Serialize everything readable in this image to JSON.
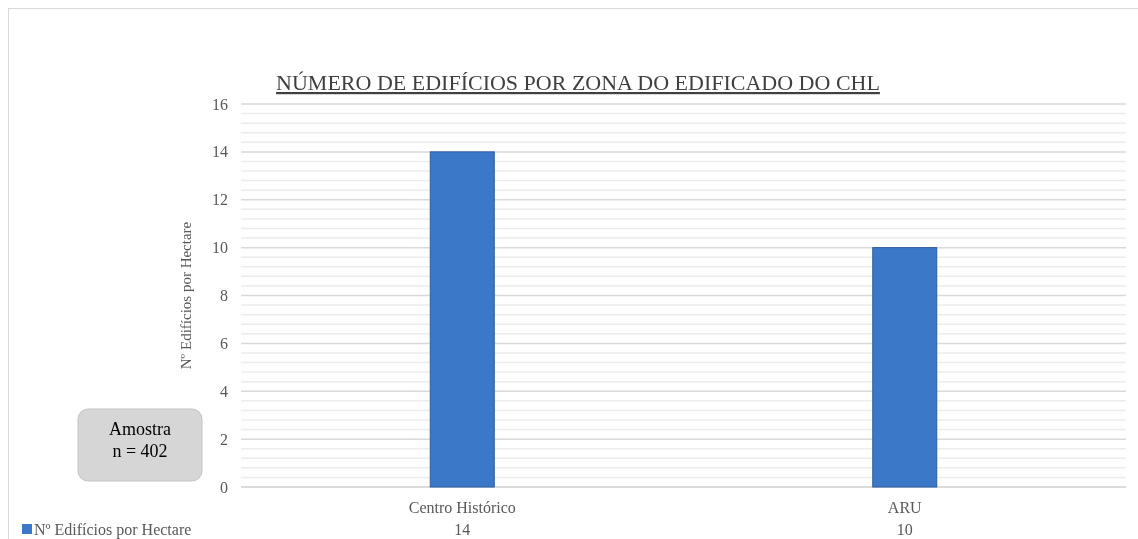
{
  "chart_data": {
    "type": "bar",
    "title": "NÚMERO DE EDIFÍCIOS POR ZONA DO EDIFICADO DO CHL",
    "ylabel": "Nº Edifícios por Hectare",
    "categories": [
      "Centro Histórico",
      "ARU"
    ],
    "series": [
      {
        "name": "Nº Edifícios por Hectare",
        "color": "#3b78c8",
        "values": [
          14,
          10
        ]
      }
    ],
    "ylim": [
      0,
      16
    ],
    "yticks": [
      0,
      2,
      4,
      6,
      8,
      10,
      12,
      14,
      16
    ],
    "grid": true,
    "legend": "bottom left",
    "data_labels": true,
    "annotations": [
      "Amostra n = 402"
    ]
  }
}
